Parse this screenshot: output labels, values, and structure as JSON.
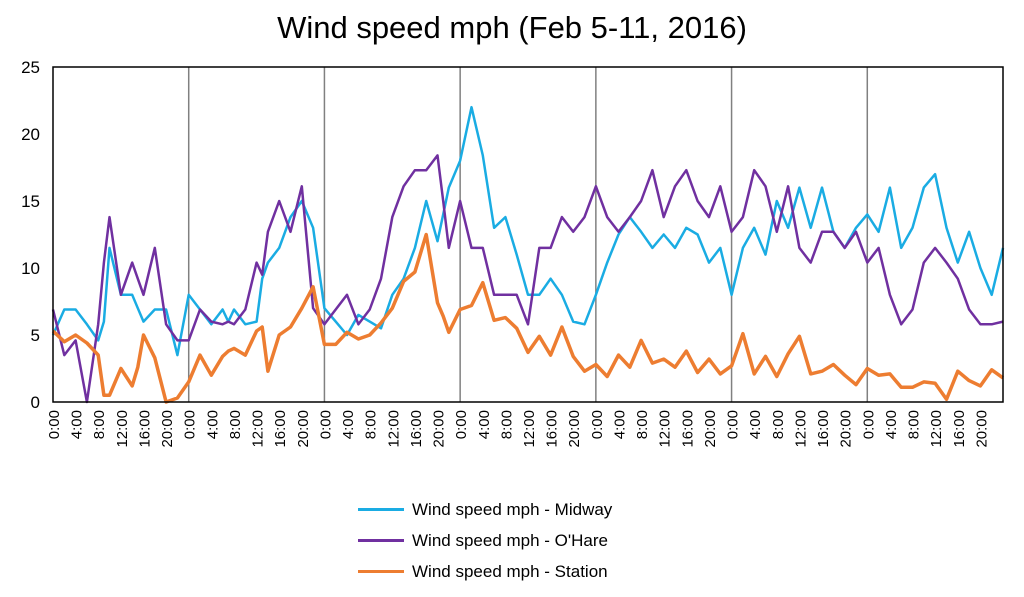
{
  "chart_data": {
    "type": "line",
    "title": "Wind speed mph (Feb 5-11, 2016)",
    "xlabel": "",
    "ylabel": "",
    "ylim": [
      0,
      25
    ],
    "y_ticks": [
      0,
      5,
      10,
      15,
      20,
      25
    ],
    "x_tick_labels": [
      "0:00",
      "4:00",
      "8:00",
      "12:00",
      "16:00",
      "20:00"
    ],
    "days": 7,
    "hours_per_day": 24,
    "grid": "vertical day separators",
    "legend_position": "bottom",
    "series": [
      {
        "name": "Wind speed mph - Midway",
        "color": "#1AACE3",
        "x_hours": [
          0,
          2,
          4,
          6,
          8,
          9,
          10,
          12,
          14,
          15,
          16,
          18,
          20,
          22,
          24,
          26,
          28,
          30,
          31,
          32,
          34,
          36,
          37,
          38,
          40,
          42,
          44,
          46,
          48,
          50,
          52,
          54,
          56,
          58,
          60,
          62,
          64,
          66,
          68,
          69,
          70,
          72,
          74,
          76,
          78,
          80,
          82,
          84,
          86,
          88,
          90,
          92,
          94,
          96,
          98,
          100,
          102,
          104,
          106,
          108,
          110,
          112,
          114,
          116,
          118,
          120,
          122,
          124,
          126,
          128,
          130,
          132,
          134,
          136,
          138,
          140,
          142,
          144,
          146,
          148,
          150,
          152,
          154,
          156,
          158,
          160,
          162,
          164,
          166,
          168
        ],
        "values": [
          5,
          6.9,
          6.9,
          5.8,
          4.6,
          6,
          11.5,
          8,
          8,
          7,
          6,
          6.9,
          6.9,
          3.5,
          8,
          6.9,
          5.8,
          6.9,
          6,
          6.9,
          5.8,
          6,
          9.2,
          10.4,
          11.5,
          13.8,
          15,
          13,
          7,
          6,
          5,
          6.5,
          6,
          5.5,
          8,
          9.2,
          11.5,
          15,
          12,
          14,
          16,
          18,
          22,
          18.4,
          13,
          13.8,
          11,
          8,
          8,
          9.2,
          8,
          6,
          5.8,
          8,
          10.4,
          12.5,
          13.8,
          12.7,
          11.5,
          12.5,
          11.5,
          13,
          12.5,
          10.4,
          11.5,
          8,
          11.5,
          13,
          11,
          15,
          13,
          16,
          13,
          16,
          12.7,
          11.5,
          13,
          14,
          12.7,
          16,
          11.5,
          13,
          16,
          17,
          13,
          10.4,
          12.7,
          10,
          8,
          11.5
        ]
      },
      {
        "name": "Wind speed mph - O'Hare",
        "color": "#7030A0",
        "x_hours": [
          0,
          2,
          4,
          6,
          8,
          9,
          10,
          12,
          14,
          15,
          16,
          18,
          20,
          22,
          24,
          26,
          28,
          30,
          31,
          32,
          34,
          36,
          37,
          38,
          40,
          42,
          44,
          46,
          48,
          50,
          52,
          54,
          56,
          58,
          60,
          62,
          64,
          66,
          68,
          69,
          70,
          72,
          74,
          76,
          78,
          80,
          82,
          84,
          86,
          88,
          90,
          92,
          94,
          96,
          98,
          100,
          102,
          104,
          106,
          108,
          110,
          112,
          114,
          116,
          118,
          120,
          122,
          124,
          126,
          128,
          130,
          132,
          134,
          136,
          138,
          140,
          142,
          144,
          146,
          148,
          150,
          152,
          154,
          156,
          158,
          160,
          162,
          164,
          166,
          168
        ],
        "values": [
          6.9,
          3.5,
          4.6,
          0,
          5.8,
          10.4,
          13.8,
          8,
          10.4,
          9.2,
          8,
          11.5,
          5.8,
          4.6,
          4.6,
          6.9,
          6,
          5.8,
          6,
          5.8,
          6.9,
          10.4,
          9.5,
          12.7,
          15,
          12.7,
          16.1,
          7,
          5.8,
          6.9,
          8,
          5.8,
          6.9,
          9.2,
          13.8,
          16.1,
          17.3,
          17.3,
          18.4,
          15,
          11.5,
          15,
          11.5,
          11.5,
          8,
          8,
          8,
          5.8,
          11.5,
          11.5,
          13.8,
          12.7,
          13.8,
          16.1,
          13.8,
          12.7,
          13.8,
          15,
          17.3,
          13.8,
          16.1,
          17.3,
          15,
          13.8,
          16.1,
          12.7,
          13.8,
          17.3,
          16.1,
          12.7,
          16.1,
          11.5,
          10.4,
          12.7,
          12.7,
          11.5,
          12.7,
          10.4,
          11.5,
          8,
          5.8,
          6.9,
          10.4,
          11.5,
          10.4,
          9.2,
          6.9,
          5.8,
          5.8,
          6
        ]
      },
      {
        "name": "Wind speed mph - Station",
        "color": "#ED7D31",
        "x_hours": [
          0,
          2,
          4,
          6,
          8,
          9,
          10,
          12,
          14,
          15,
          16,
          18,
          20,
          22,
          24,
          26,
          28,
          30,
          31,
          32,
          34,
          36,
          37,
          38,
          40,
          42,
          44,
          46,
          48,
          50,
          52,
          54,
          56,
          58,
          60,
          62,
          64,
          66,
          68,
          69,
          70,
          72,
          74,
          76,
          78,
          80,
          82,
          84,
          86,
          88,
          90,
          92,
          94,
          96,
          98,
          100,
          102,
          104,
          106,
          108,
          110,
          112,
          114,
          116,
          118,
          120,
          122,
          124,
          126,
          128,
          130,
          132,
          134,
          136,
          138,
          140,
          142,
          144,
          146,
          148,
          150,
          152,
          154,
          156,
          158,
          160,
          162,
          164,
          166,
          168
        ],
        "values": [
          5.3,
          4.5,
          5,
          4.4,
          3.5,
          0.5,
          0.5,
          2.5,
          1.2,
          2.6,
          5,
          3.3,
          0,
          0.3,
          1.5,
          3.5,
          2,
          3.4,
          3.8,
          4,
          3.5,
          5.3,
          5.6,
          2.3,
          5,
          5.6,
          7,
          8.6,
          4.3,
          4.3,
          5.2,
          4.7,
          5,
          5.9,
          7,
          9,
          9.7,
          12.5,
          7.4,
          6.4,
          5.2,
          6.9,
          7.2,
          8.9,
          6.1,
          6.3,
          5.5,
          3.7,
          4.9,
          3.5,
          5.6,
          3.4,
          2.3,
          2.8,
          1.9,
          3.5,
          2.6,
          4.6,
          2.9,
          3.2,
          2.6,
          3.8,
          2.2,
          3.2,
          2.1,
          2.7,
          5.1,
          2.1,
          3.4,
          1.9,
          3.6,
          4.9,
          2.1,
          2.3,
          2.8,
          2,
          1.3,
          2.5,
          2,
          2.1,
          1.1,
          1.1,
          1.5,
          1.4,
          0.2,
          2.3,
          1.6,
          1.2,
          2.4,
          1.8
        ]
      }
    ]
  }
}
